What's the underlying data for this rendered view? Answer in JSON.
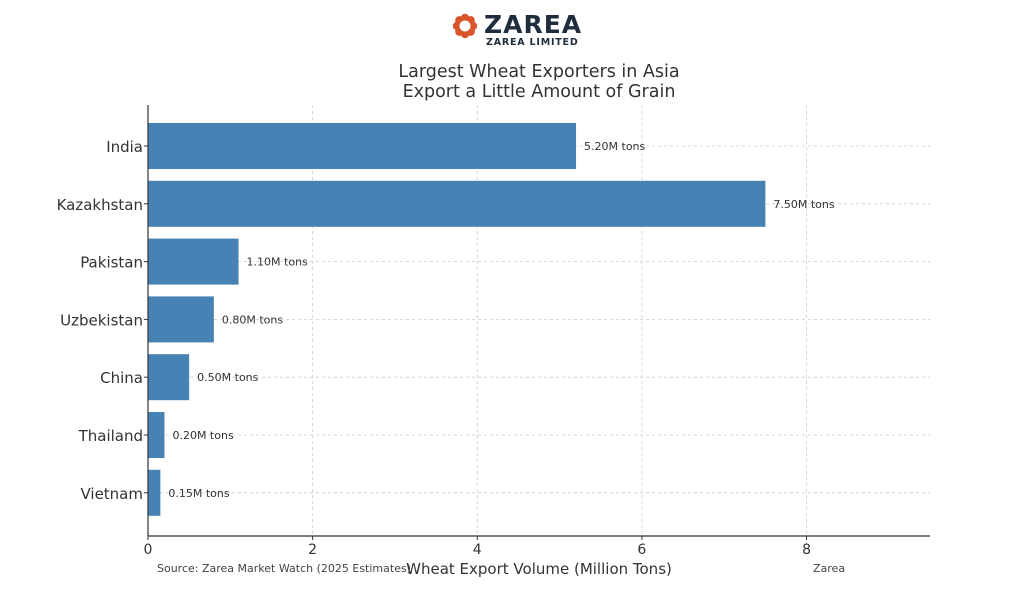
{
  "brand": {
    "name": "ZAREA",
    "tagline": "ZAREA LIMITED",
    "logo_color": "#d9542a",
    "word_color": "#1f2d3d",
    "icon": "gear-flower-logo-icon"
  },
  "footer": {
    "source": "Source: Zarea Market Watch (2025 Estimates)",
    "credit": "Zarea"
  },
  "chart_data": {
    "type": "bar",
    "orientation": "horizontal",
    "title_lines": [
      "Largest Wheat Exporters in Asia",
      "Export a Little Amount of Grain"
    ],
    "xlabel": "Wheat Export Volume (Million Tons)",
    "ylabel": "",
    "categories": [
      "India",
      "Kazakhstan",
      "Pakistan",
      "Uzbekistan",
      "China",
      "Thailand",
      "Vietnam"
    ],
    "values": [
      5.2,
      7.5,
      1.1,
      0.8,
      0.5,
      0.2,
      0.15
    ],
    "data_labels": [
      "5.20M tons",
      "7.50M tons",
      "1.10M tons",
      "0.80M tons",
      "0.50M tons",
      "0.20M tons",
      "0.15M tons"
    ],
    "xlim": [
      0,
      9.5
    ],
    "xticks": [
      0,
      2,
      4,
      6,
      8
    ],
    "grid": true,
    "bar_color": "#4682b4"
  }
}
